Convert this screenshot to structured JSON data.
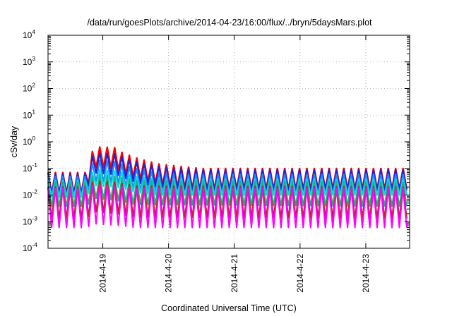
{
  "chart_data": {
    "type": "line",
    "title": "/data/run/goesPlots/archive/2014-04-23/16:00/flux/../bryn/5daysMars.plot",
    "xlabel": "Coordinated Universal Time (UTC)",
    "ylabel": "cSv/day",
    "yscale": "log",
    "ylim": [
      0.0001,
      10000
    ],
    "y_ticks": [
      {
        "base": "10",
        "exp": "-4",
        "value": 0.0001
      },
      {
        "base": "10",
        "exp": "-3",
        "value": 0.001
      },
      {
        "base": "10",
        "exp": "-2",
        "value": 0.01
      },
      {
        "base": "10",
        "exp": "-1",
        "value": 0.1
      },
      {
        "base": "10",
        "exp": "0",
        "value": 1
      },
      {
        "base": "10",
        "exp": "1",
        "value": 10
      },
      {
        "base": "10",
        "exp": "2",
        "value": 100
      },
      {
        "base": "10",
        "exp": "3",
        "value": 1000
      },
      {
        "base": "10",
        "exp": "4",
        "value": 10000
      }
    ],
    "xlim": [
      "2014-04-18 04:00",
      "2014-04-23 16:00"
    ],
    "x_ticks": [
      "2014-4-19",
      "2014-4-20",
      "2014-4-21",
      "2014-4-22",
      "2014-4-23"
    ],
    "grid": true,
    "sawtooth_period_hours": 2.7,
    "series": [
      {
        "color": "#ff0000",
        "peak": [
          [
            0,
            0.07
          ],
          [
            14,
            0.07
          ],
          [
            15.5,
            0.3
          ],
          [
            17,
            0.65
          ],
          [
            25,
            0.6
          ],
          [
            27,
            0.4
          ],
          [
            32,
            0.25
          ],
          [
            40,
            0.15
          ],
          [
            48,
            0.12
          ],
          [
            56,
            0.1
          ],
          [
            64,
            0.1
          ],
          [
            80,
            0.1
          ],
          [
            96,
            0.1
          ],
          [
            112,
            0.1
          ],
          [
            128,
            0.1
          ],
          [
            136,
            0.1
          ]
        ],
        "ratio": 6
      },
      {
        "color": "#1e22d8",
        "peak": [
          [
            0,
            0.065
          ],
          [
            14,
            0.065
          ],
          [
            15.5,
            0.22
          ],
          [
            17,
            0.4
          ],
          [
            25,
            0.35
          ],
          [
            27,
            0.28
          ],
          [
            32,
            0.18
          ],
          [
            40,
            0.12
          ],
          [
            48,
            0.1
          ],
          [
            56,
            0.09
          ],
          [
            64,
            0.09
          ],
          [
            96,
            0.09
          ],
          [
            136,
            0.09
          ]
        ],
        "ratio": 6
      },
      {
        "color": "#1a8cff",
        "peak": [
          [
            0,
            0.05
          ],
          [
            14,
            0.05
          ],
          [
            15.5,
            0.12
          ],
          [
            17,
            0.2
          ],
          [
            25,
            0.18
          ],
          [
            27,
            0.14
          ],
          [
            32,
            0.1
          ],
          [
            40,
            0.07
          ],
          [
            48,
            0.06
          ],
          [
            136,
            0.06
          ]
        ],
        "ratio": 6
      },
      {
        "color": "#00e0e0",
        "peak": [
          [
            0,
            0.035
          ],
          [
            14,
            0.035
          ],
          [
            17,
            0.09
          ],
          [
            25,
            0.08
          ],
          [
            32,
            0.05
          ],
          [
            40,
            0.04
          ],
          [
            136,
            0.04
          ]
        ],
        "ratio": 4
      },
      {
        "color": "#20b080",
        "peak": [
          [
            0,
            0.03
          ],
          [
            14,
            0.03
          ],
          [
            17,
            0.06
          ],
          [
            25,
            0.05
          ],
          [
            32,
            0.035
          ],
          [
            136,
            0.03
          ]
        ],
        "ratio": 8
      },
      {
        "color": "#c02020",
        "peak": [
          [
            0,
            0.02
          ],
          [
            14,
            0.02
          ],
          [
            17,
            0.035
          ],
          [
            25,
            0.03
          ],
          [
            32,
            0.022
          ],
          [
            136,
            0.02
          ]
        ],
        "ratio": 15
      },
      {
        "color": "#ff00ff",
        "peak": [
          [
            0,
            0.018
          ],
          [
            14,
            0.018
          ],
          [
            17,
            0.025
          ],
          [
            25,
            0.022
          ],
          [
            32,
            0.018
          ],
          [
            136,
            0.018
          ]
        ],
        "ratio": 30
      }
    ]
  }
}
